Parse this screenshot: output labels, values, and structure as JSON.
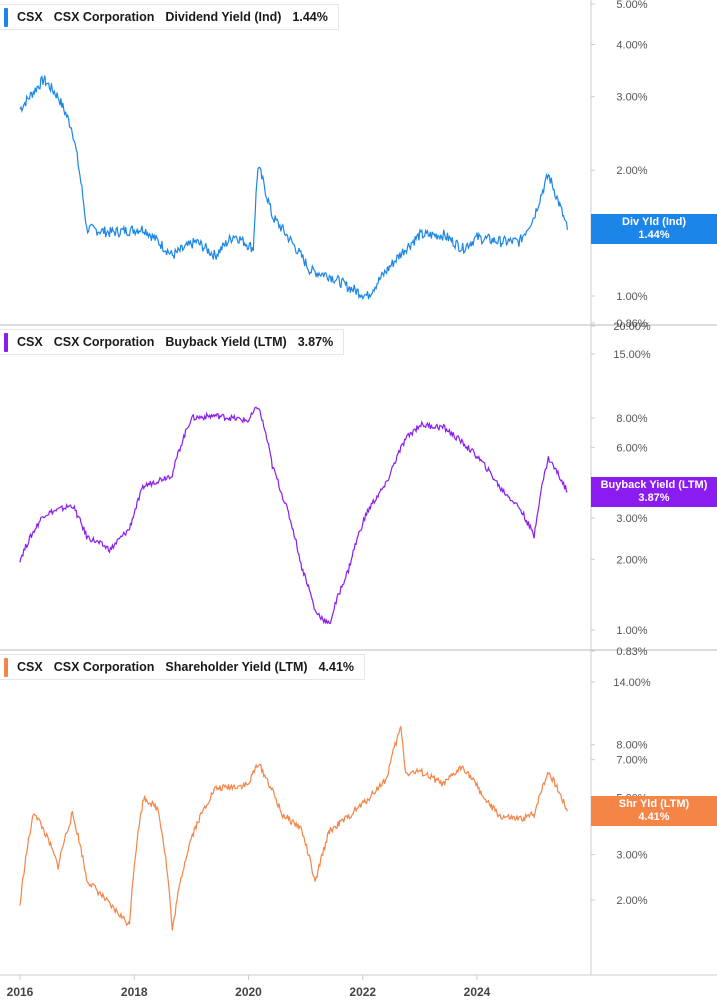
{
  "colors": {
    "dividend": "#1c86e8",
    "buyback": "#8a1cf0",
    "shareholder": "#f58447"
  },
  "panels": [
    {
      "ticker": "CSX",
      "company": "CSX Corporation",
      "metric": "Dividend Yield (Ind)",
      "value": "1.44%",
      "flag_label": "Div Yld (Ind)",
      "flag_value": "1.44%"
    },
    {
      "ticker": "CSX",
      "company": "CSX Corporation",
      "metric": "Buyback Yield (LTM)",
      "value": "3.87%",
      "flag_label": "Buyback Yield (LTM)",
      "flag_value": "3.87%"
    },
    {
      "ticker": "CSX",
      "company": "CSX Corporation",
      "metric": "Shareholder Yield (LTM)",
      "value": "4.41%",
      "flag_label": "Shr Yld (LTM)",
      "flag_value": "4.41%"
    }
  ],
  "chart_data": [
    {
      "type": "line",
      "title": "CSX Corporation Dividend Yield (Ind)",
      "series": [
        {
          "name": "Dividend Yield (Ind)",
          "color": "#1c86e8"
        }
      ],
      "y_scale": "log",
      "ylim": [
        0.86,
        5.0
      ],
      "y_tick_labels": [
        "5.00%",
        "4.00%",
        "3.00%",
        "2.00%",
        "1.00%",
        "0.86%"
      ],
      "y_tick_values": [
        5.0,
        4.0,
        3.0,
        2.0,
        1.0,
        0.86
      ],
      "x": [
        "2016-01",
        "2016-06",
        "2016-09",
        "2016-12",
        "2017-03",
        "2017-08",
        "2018-03",
        "2018-09",
        "2019-02",
        "2019-06",
        "2019-10",
        "2020-02",
        "2020-03",
        "2020-06",
        "2020-10",
        "2021-02",
        "2021-06",
        "2021-10",
        "2022-02",
        "2022-06",
        "2022-10",
        "2023-01",
        "2023-06",
        "2023-10",
        "2024-01",
        "2024-06",
        "2024-10",
        "2025-01",
        "2025-04",
        "2025-08"
      ],
      "values": [
        2.8,
        3.3,
        3.0,
        2.5,
        1.45,
        1.42,
        1.45,
        1.25,
        1.35,
        1.25,
        1.4,
        1.3,
        2.05,
        1.55,
        1.35,
        1.15,
        1.12,
        1.05,
        1.0,
        1.15,
        1.3,
        1.4,
        1.4,
        1.3,
        1.38,
        1.35,
        1.35,
        1.55,
        1.95,
        1.44
      ]
    },
    {
      "type": "line",
      "title": "CSX Corporation Buyback Yield (LTM)",
      "series": [
        {
          "name": "Buyback Yield (LTM)",
          "color": "#8a1cf0"
        }
      ],
      "y_scale": "log",
      "ylim": [
        0.83,
        20.0
      ],
      "y_tick_labels": [
        "20.00%",
        "15.00%",
        "8.00%",
        "6.00%",
        "3.00%",
        "2.00%",
        "1.00%",
        "0.83%"
      ],
      "y_tick_values": [
        20.0,
        15.0,
        8.0,
        6.0,
        3.0,
        2.0,
        1.0,
        0.83
      ],
      "x": [
        "2016-01",
        "2016-06",
        "2016-12",
        "2017-03",
        "2017-08",
        "2017-12",
        "2018-03",
        "2018-09",
        "2019-01",
        "2019-06",
        "2020-01",
        "2020-03",
        "2020-06",
        "2020-08",
        "2020-12",
        "2021-03",
        "2021-06",
        "2021-10",
        "2022-02",
        "2022-06",
        "2022-10",
        "2023-01",
        "2023-06",
        "2024-01",
        "2024-06",
        "2024-10",
        "2025-01",
        "2025-04",
        "2025-08"
      ],
      "values": [
        2.0,
        3.1,
        3.4,
        2.5,
        2.2,
        2.7,
        4.1,
        4.6,
        8.0,
        8.2,
        7.8,
        9.0,
        5.0,
        3.8,
        1.9,
        1.2,
        1.05,
        1.8,
        3.2,
        4.2,
        6.5,
        7.5,
        7.3,
        5.5,
        4.0,
        3.3,
        2.5,
        5.4,
        3.87
      ]
    },
    {
      "type": "line",
      "title": "CSX Corporation Shareholder Yield (LTM)",
      "series": [
        {
          "name": "Shareholder Yield (LTM)",
          "color": "#f58447"
        }
      ],
      "y_scale": "log",
      "ylim": [
        1.0,
        20.0
      ],
      "y_tick_labels": [
        "14.00%",
        "8.00%",
        "7.00%",
        "5.00%",
        "3.00%",
        "2.00%"
      ],
      "y_tick_values": [
        14.0,
        8.0,
        7.0,
        5.0,
        3.0,
        2.0
      ],
      "x": [
        "2016-01",
        "2016-04",
        "2016-09",
        "2016-12",
        "2017-03",
        "2017-08",
        "2017-12",
        "2018-03",
        "2018-06",
        "2018-09",
        "2019-01",
        "2019-06",
        "2020-01",
        "2020-03",
        "2020-08",
        "2020-12",
        "2021-03",
        "2021-06",
        "2021-10",
        "2022-02",
        "2022-06",
        "2022-09",
        "2022-10",
        "2023-01",
        "2023-06",
        "2023-10",
        "2024-03",
        "2024-06",
        "2024-10",
        "2025-01",
        "2025-04",
        "2025-08"
      ],
      "values": [
        1.9,
        4.4,
        2.7,
        4.3,
        2.4,
        1.9,
        1.6,
        5.0,
        4.5,
        1.5,
        3.5,
        5.4,
        5.6,
        6.8,
        4.3,
        3.8,
        2.3,
        3.7,
        4.2,
        4.9,
        5.9,
        9.3,
        6.2,
        6.3,
        5.6,
        6.6,
        4.8,
        4.2,
        4.1,
        4.3,
        6.3,
        4.41
      ]
    }
  ],
  "x_axis": {
    "labels": [
      "2016",
      "2018",
      "2020",
      "2022",
      "2024"
    ],
    "values": [
      2016,
      2018,
      2020,
      2022,
      2024
    ],
    "range": [
      2015.9,
      2026.0
    ]
  }
}
